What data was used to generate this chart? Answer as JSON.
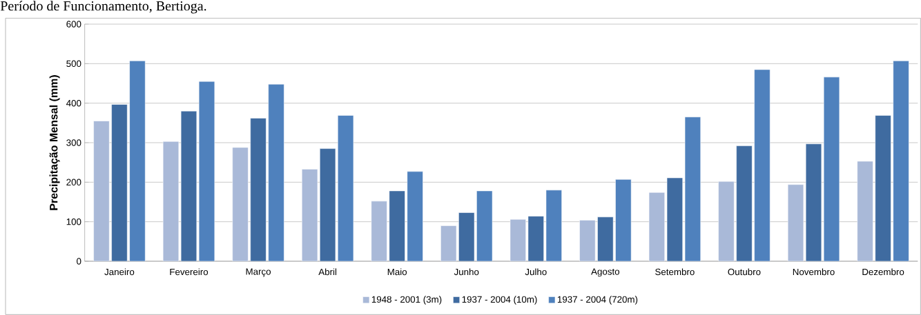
{
  "chart_data": {
    "type": "bar",
    "title": "Período de Funcionamento, Bertioga.",
    "ylabel": "Precipitação Mensal (mm)",
    "categories": [
      "Janeiro",
      "Fevereiro",
      "Março",
      "Abril",
      "Maio",
      "Junho",
      "Julho",
      "Agosto",
      "Setembro",
      "Outubro",
      "Novembro",
      "Dezembro"
    ],
    "series": [
      {
        "name": "1948 - 2001 (3m)",
        "color": "#a9b9d8",
        "values": [
          355,
          303,
          288,
          233,
          152,
          90,
          106,
          104,
          174,
          202,
          194,
          253
        ]
      },
      {
        "name": "1937 - 2004 (10m)",
        "color": "#3f6ba0",
        "values": [
          397,
          380,
          362,
          285,
          178,
          123,
          114,
          112,
          211,
          292,
          297,
          369
        ]
      },
      {
        "name": "1937 - 2004 (720m)",
        "color": "#4f81bd",
        "values": [
          507,
          455,
          448,
          369,
          227,
          178,
          180,
          207,
          365,
          485,
          466,
          507
        ]
      }
    ],
    "ylim": [
      0,
      600
    ],
    "yticks": [
      0,
      100,
      200,
      300,
      400,
      500,
      600
    ],
    "grid": "y",
    "legend": "bottom"
  }
}
